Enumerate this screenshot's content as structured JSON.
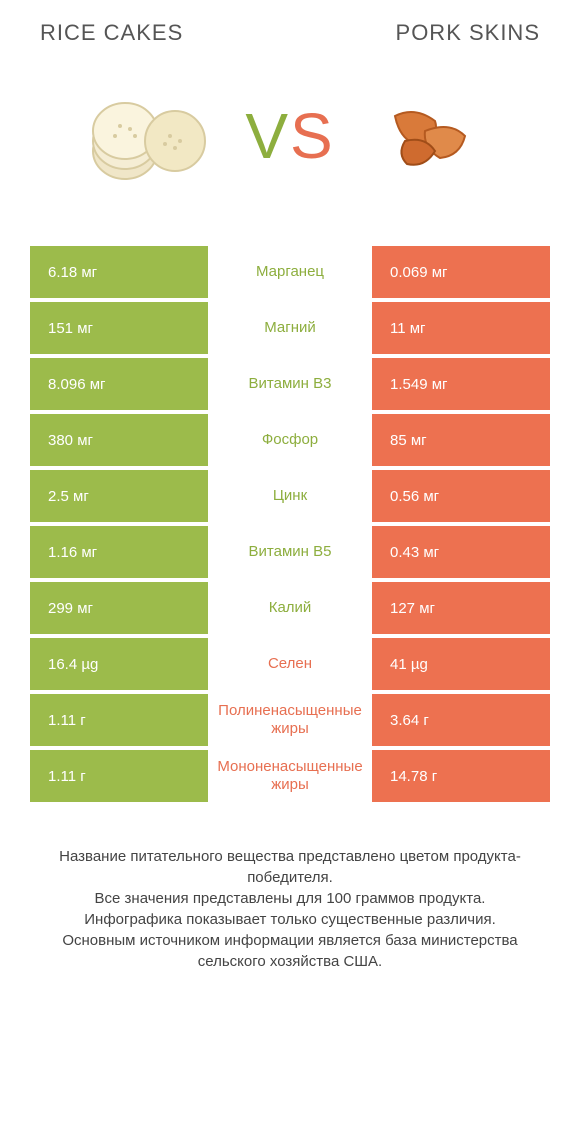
{
  "header": {
    "left_title": "RICE CAKES",
    "right_title": "PORK SKINS"
  },
  "vs": {
    "v": "V",
    "s": "S"
  },
  "colors": {
    "green": "#9cbb4b",
    "orange": "#ed7150",
    "orange_label": "#e76f51",
    "green_label": "#8dae3e",
    "text_white": "#ffffff"
  },
  "comparison": {
    "type": "table",
    "rows": [
      {
        "left": "6.18 мг",
        "label": "Марганец",
        "right": "0.069 мг",
        "winner": "left"
      },
      {
        "left": "151 мг",
        "label": "Магний",
        "right": "11 мг",
        "winner": "left"
      },
      {
        "left": "8.096 мг",
        "label": "Витамин B3",
        "right": "1.549 мг",
        "winner": "left"
      },
      {
        "left": "380 мг",
        "label": "Фосфор",
        "right": "85 мг",
        "winner": "left"
      },
      {
        "left": "2.5 мг",
        "label": "Цинк",
        "right": "0.56 мг",
        "winner": "left"
      },
      {
        "left": "1.16 мг",
        "label": "Витамин B5",
        "right": "0.43 мг",
        "winner": "left"
      },
      {
        "left": "299 мг",
        "label": "Калий",
        "right": "127 мг",
        "winner": "left"
      },
      {
        "left": "16.4 µg",
        "label": "Селен",
        "right": "41 µg",
        "winner": "right"
      },
      {
        "left": "1.11 г",
        "label": "Полиненасыщенные жиры",
        "right": "3.64 г",
        "winner": "right"
      },
      {
        "left": "1.11 г",
        "label": "Мононенасыщенные жиры",
        "right": "14.78 г",
        "winner": "right"
      }
    ]
  },
  "footer": {
    "line1": "Название питательного вещества представлено цветом продукта-победителя.",
    "line2": "Все значения представлены для 100 граммов продукта.",
    "line3": "Инфографика показывает только существенные различия.",
    "line4": "Основным источником информации является база министерства сельского хозяйства США."
  }
}
